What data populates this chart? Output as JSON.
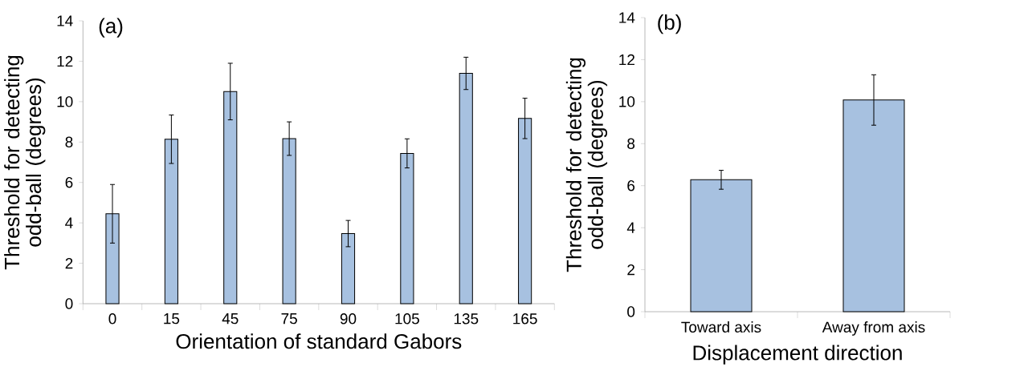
{
  "chart_data": [
    {
      "type": "bar",
      "categories": [
        "0",
        "15",
        "45",
        "75",
        "90",
        "105",
        "135",
        "165"
      ],
      "values": [
        4.45,
        8.14,
        10.5,
        8.17,
        3.47,
        7.44,
        11.4,
        9.17
      ],
      "errors": [
        1.45,
        1.2,
        1.4,
        0.83,
        0.65,
        0.72,
        0.8,
        1.0
      ],
      "color": "#a7c1e0",
      "xlabel": "Orientation of standard Gabors",
      "ylabel": "Threshold for detecting odd-ball (degrees)",
      "ylim": [
        0,
        14
      ],
      "yticks": [
        0,
        2,
        4,
        6,
        8,
        10,
        12,
        14
      ],
      "annotations": [
        "(a)"
      ]
    },
    {
      "type": "bar",
      "categories": [
        "Toward axis",
        "Away from axis"
      ],
      "values": [
        6.28,
        10.08
      ],
      "errors": [
        0.45,
        1.2
      ],
      "color": "#a7c1e0",
      "xlabel": "Displacement direction",
      "ylabel": "Threshold for detecting odd-ball (degrees)",
      "ylim": [
        0,
        14
      ],
      "yticks": [
        0,
        2,
        4,
        6,
        8,
        10,
        12,
        14
      ],
      "annotations": [
        "(b)"
      ]
    }
  ]
}
